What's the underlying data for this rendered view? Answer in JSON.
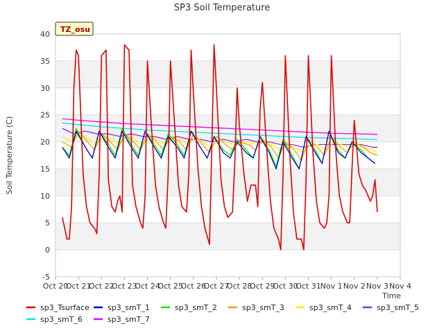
{
  "chart_data": {
    "type": "line",
    "title": "SP3 Soil Temperature",
    "xlabel": "Time",
    "ylabel": "Soil Temperature (C)",
    "ylim": [
      -5,
      40
    ],
    "xlim": [
      0,
      15
    ],
    "yticks": [
      -5,
      0,
      5,
      10,
      15,
      20,
      25,
      30,
      35,
      40
    ],
    "xticks": [
      0,
      1,
      2,
      3,
      4,
      5,
      6,
      7,
      8,
      9,
      10,
      11,
      12,
      13,
      14,
      15
    ],
    "xtick_labels": [
      "Oct 20",
      "Oct 21",
      "Oct 22",
      "Oct 23",
      "Oct 24",
      "Oct 25",
      "Oct 26",
      "Oct 27",
      "Oct 28",
      "Oct 29",
      "Oct 30",
      "Oct 31",
      "Nov 1",
      "Nov 2",
      "Nov 3",
      "Nov 4"
    ],
    "badge": "TZ_osu",
    "legend_position": "bottom",
    "series": [
      {
        "name": "sp3_Tsurface",
        "color": "#dd0000",
        "x": [
          0.3,
          0.4,
          0.5,
          0.6,
          0.7,
          0.8,
          0.9,
          1.0,
          1.2,
          1.35,
          1.5,
          1.7,
          1.8,
          1.9,
          2.0,
          2.2,
          2.3,
          2.45,
          2.6,
          2.7,
          2.8,
          2.9,
          3.0,
          3.2,
          3.35,
          3.5,
          3.7,
          3.8,
          3.9,
          4.0,
          4.2,
          4.35,
          4.5,
          4.7,
          4.8,
          4.9,
          5.0,
          5.2,
          5.35,
          5.5,
          5.7,
          5.8,
          5.9,
          6.0,
          6.2,
          6.35,
          6.5,
          6.7,
          6.8,
          6.9,
          7.0,
          7.2,
          7.35,
          7.5,
          7.7,
          7.8,
          7.9,
          8.0,
          8.2,
          8.35,
          8.5,
          8.7,
          8.8,
          8.9,
          9.0,
          9.2,
          9.35,
          9.5,
          9.7,
          9.8,
          9.9,
          10.0,
          10.2,
          10.35,
          10.5,
          10.7,
          10.8,
          10.9,
          11.0,
          11.2,
          11.35,
          11.5,
          11.7,
          11.8,
          11.9,
          12.0,
          12.2,
          12.35,
          12.5,
          12.7,
          12.8,
          12.9,
          13.0,
          13.2,
          13.35,
          13.5,
          13.7,
          13.8,
          13.9,
          14.0
        ],
        "y": [
          6,
          4,
          2,
          2,
          8,
          30,
          37,
          36,
          14,
          8,
          5,
          4,
          3,
          14,
          36,
          37,
          13,
          8,
          7,
          9,
          10,
          7,
          38,
          37,
          12,
          8,
          5,
          4,
          10,
          35,
          21,
          12,
          8,
          5,
          4,
          14,
          35,
          22,
          12,
          8,
          7,
          14,
          37,
          29,
          15,
          8,
          4,
          1,
          19,
          38,
          30,
          13,
          8,
          6,
          7,
          16,
          30,
          23,
          14,
          9,
          12,
          12,
          8,
          26,
          31,
          18,
          9,
          4,
          2,
          0,
          14,
          36,
          17,
          7,
          2,
          2,
          0,
          13,
          36,
          18,
          9,
          5,
          4,
          5,
          10,
          36,
          18,
          10,
          7,
          5,
          5,
          15,
          24,
          14,
          12,
          11,
          9,
          10,
          13,
          7
        ]
      },
      {
        "name": "sp3_smT_1",
        "color": "#0000cc",
        "x": [
          0.3,
          0.6,
          0.9,
          1.3,
          1.6,
          1.9,
          2.3,
          2.6,
          2.9,
          3.3,
          3.6,
          3.9,
          4.3,
          4.6,
          4.9,
          5.3,
          5.6,
          5.9,
          6.3,
          6.6,
          6.9,
          7.3,
          7.6,
          7.9,
          8.3,
          8.6,
          8.9,
          9.3,
          9.6,
          9.9,
          10.3,
          10.6,
          10.9,
          11.3,
          11.6,
          11.9,
          12.3,
          12.6,
          12.9,
          13.3,
          13.6,
          13.9
        ],
        "y": [
          19,
          17,
          22,
          19,
          17,
          22,
          19,
          17,
          22,
          19,
          17,
          22,
          19,
          17,
          21,
          19,
          17,
          22,
          19,
          17,
          21,
          18,
          17,
          20,
          18,
          17,
          21,
          18,
          15,
          20,
          17,
          15,
          21,
          18,
          16,
          22,
          18,
          17,
          20,
          18,
          17,
          16
        ]
      },
      {
        "name": "sp3_smT_2",
        "color": "#00ee00",
        "x": [
          0.3,
          0.6,
          0.9,
          1.3,
          1.6,
          1.9,
          2.3,
          2.6,
          2.9,
          3.3,
          3.6,
          3.9,
          4.3,
          4.6,
          4.9,
          5.3,
          5.6,
          5.9,
          6.3,
          6.6,
          6.9,
          7.3,
          7.6,
          7.9,
          8.3,
          8.6,
          8.9,
          9.3,
          9.6,
          9.9,
          10.3,
          10.6,
          10.9,
          11.3,
          11.6,
          11.9,
          12.3,
          12.6,
          12.9,
          13.3,
          13.6,
          13.9
        ],
        "y": [
          19,
          17.5,
          22.5,
          19,
          17,
          22,
          19.5,
          17.5,
          22.5,
          19.5,
          17.5,
          22,
          19.5,
          17.5,
          21.5,
          19.5,
          17.5,
          22,
          19,
          17,
          21,
          18.5,
          17.5,
          20.5,
          18.5,
          17,
          21,
          18.5,
          15.5,
          20.5,
          17.5,
          15,
          21,
          18.5,
          16,
          22,
          18.5,
          17,
          20,
          18.5,
          17,
          16
        ]
      },
      {
        "name": "sp3_smT_3",
        "color": "#ff9900",
        "x": [
          0.3,
          0.7,
          1.0,
          1.4,
          1.7,
          2.0,
          2.4,
          2.7,
          3.0,
          3.4,
          3.7,
          4.0,
          4.4,
          4.7,
          5.0,
          5.4,
          5.7,
          6.0,
          6.4,
          6.7,
          7.0,
          7.4,
          7.7,
          8.0,
          8.4,
          8.7,
          9.0,
          9.4,
          9.7,
          10.0,
          10.4,
          10.7,
          11.0,
          11.4,
          11.7,
          12.0,
          12.4,
          12.7,
          13.0,
          13.4,
          13.7,
          14.0
        ],
        "y": [
          20,
          19,
          22,
          20,
          18.5,
          21.5,
          20,
          18.5,
          21.5,
          20,
          18.5,
          21.5,
          20,
          18.5,
          21,
          20,
          18.5,
          21.5,
          19.5,
          18,
          21,
          19.5,
          18.5,
          20,
          19.5,
          18.5,
          20.5,
          19,
          17,
          20,
          18.5,
          16.5,
          20.5,
          19,
          17.5,
          21,
          19,
          18,
          20,
          19,
          18,
          17.5
        ]
      },
      {
        "name": "sp3_smT_4",
        "color": "#ffee00",
        "x": [
          0.3,
          0.7,
          1.1,
          1.4,
          1.8,
          2.1,
          2.4,
          2.8,
          3.1,
          3.4,
          3.8,
          4.1,
          4.4,
          4.8,
          5.1,
          5.4,
          5.8,
          6.1,
          6.4,
          6.8,
          7.1,
          7.4,
          7.8,
          8.1,
          8.4,
          8.8,
          9.1,
          9.4,
          9.8,
          10.1,
          10.4,
          10.8,
          11.1,
          11.4,
          11.8,
          12.1,
          12.4,
          12.8,
          13.1,
          13.4,
          13.8,
          14.0
        ],
        "y": [
          21,
          20,
          21.5,
          20.5,
          19.5,
          21,
          20.5,
          19.5,
          21,
          20.5,
          19.5,
          21,
          20.5,
          19.5,
          20.5,
          20.5,
          19.5,
          21,
          20,
          19,
          20.5,
          20,
          19.5,
          20,
          20,
          19.5,
          20,
          19.5,
          18.5,
          19.5,
          19,
          18,
          19.5,
          19.5,
          18.5,
          20,
          19.5,
          19,
          19.5,
          19,
          18.5,
          18
        ]
      },
      {
        "name": "sp3_smT_5",
        "color": "#8a2be2",
        "x": [
          0.3,
          0.8,
          1.3,
          1.8,
          2.3,
          2.8,
          3.3,
          3.8,
          4.3,
          4.8,
          5.3,
          5.8,
          6.3,
          6.8,
          7.3,
          7.8,
          8.3,
          8.8,
          9.3,
          9.8,
          10.3,
          10.8,
          11.3,
          11.8,
          12.3,
          12.8,
          13.3,
          13.8,
          14.0
        ],
        "y": [
          22.5,
          21.5,
          22,
          21.5,
          21.5,
          21,
          21.5,
          21,
          21,
          20.5,
          21,
          20.5,
          20.5,
          20,
          20.5,
          20,
          20.5,
          20,
          20,
          19.5,
          19.5,
          19,
          19.5,
          19.5,
          19.5,
          19.5,
          19.5,
          19,
          19
        ]
      },
      {
        "name": "sp3_smT_6",
        "color": "#00e5ee",
        "x": [
          0.3,
          1.0,
          2.0,
          3.0,
          4.0,
          5.0,
          6.0,
          7.0,
          8.0,
          9.0,
          10.0,
          11.0,
          12.0,
          13.0,
          14.0
        ],
        "y": [
          23.5,
          23.2,
          22.8,
          22.5,
          22.2,
          22,
          21.8,
          21.6,
          21.4,
          21.2,
          21,
          20.8,
          20.7,
          20.6,
          20.4
        ]
      },
      {
        "name": "sp3_smT_7",
        "color": "#ee00ee",
        "x": [
          0.3,
          1.0,
          2.0,
          3.0,
          4.0,
          5.0,
          6.0,
          7.0,
          8.0,
          9.0,
          10.0,
          11.0,
          12.0,
          13.0,
          14.0
        ],
        "y": [
          24.3,
          24,
          23.7,
          23.4,
          23.2,
          23,
          22.8,
          22.6,
          22.4,
          22.2,
          22,
          21.8,
          21.6,
          21.5,
          21.4
        ]
      }
    ]
  }
}
